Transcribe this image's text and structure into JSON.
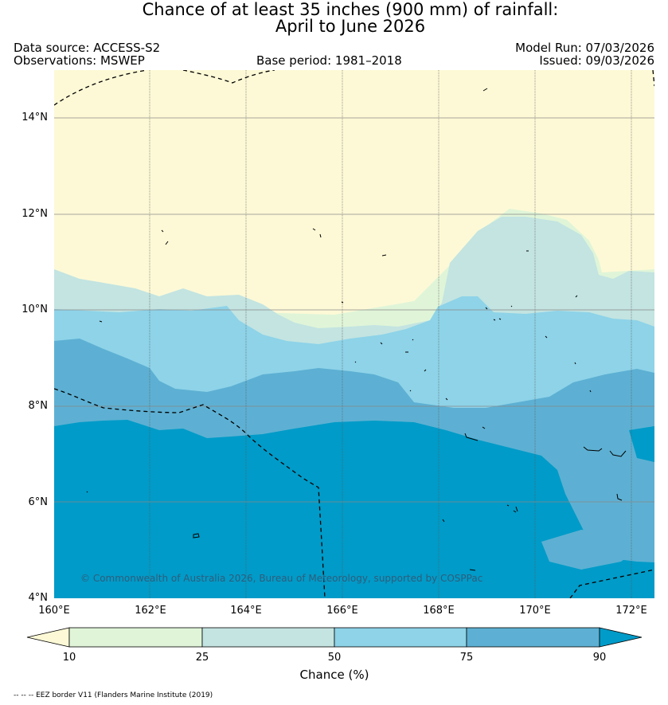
{
  "title": {
    "line1": "Chance of at least 35 inches (900  mm) of rainfall:",
    "line2": "April to June 2026"
  },
  "meta": {
    "data_source": "Data source: ACCESS-S2",
    "observations": "Observations: MSWEP",
    "base_period": "Base period: 1981–2018",
    "model_run": "Model Run: 07/03/2026",
    "issued": "Issued: 09/03/2026"
  },
  "map": {
    "lat_ticks": [
      "14°N",
      "12°N",
      "10°N",
      "8°N",
      "6°N",
      "4°N"
    ],
    "lon_ticks": [
      "160°E",
      "162°E",
      "164°E",
      "166°E",
      "168°E",
      "170°E",
      "172°E"
    ],
    "copyright": "© Commonwealth of Australia 2026, Bureau of Meteorology, supported by COSPPac",
    "lat_range": [
      4,
      15
    ],
    "lon_range": [
      160,
      172.5
    ]
  },
  "colorbar": {
    "ticks": [
      "10",
      "25",
      "50",
      "75",
      "90"
    ],
    "title": "Chance (%)",
    "colors": {
      "lt10": "#fdf9d6",
      "c10_25": "#e0f5d8",
      "c25_50": "#c3e4e1",
      "c50_75": "#8ed3e8",
      "c75_90": "#5db0d3",
      "gt90": "#009bc8"
    }
  },
  "footnote": "-- -- -- EEZ border V11 (Flanders Marine Institute (2019)"
}
